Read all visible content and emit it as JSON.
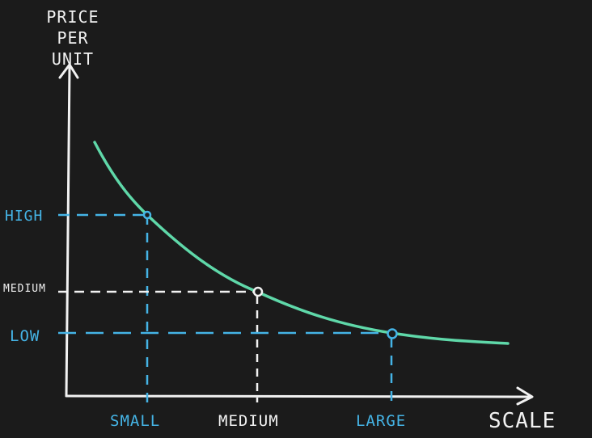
{
  "diagram": {
    "y_axis_label": "PRICE\nPER UNIT",
    "x_axis_label": "SCALE",
    "y_ticks": [
      "HIGH",
      "MEDIUM",
      "LOW"
    ],
    "x_ticks": [
      "SMALL",
      "MEDIUM",
      "LARGE"
    ],
    "colors": {
      "background": "#1b1b1b",
      "axes": "#f2f2f2",
      "curve": "#5fd8a9",
      "accent": "#45b4e6",
      "neutral_guides": "#f2f2f2"
    }
  }
}
